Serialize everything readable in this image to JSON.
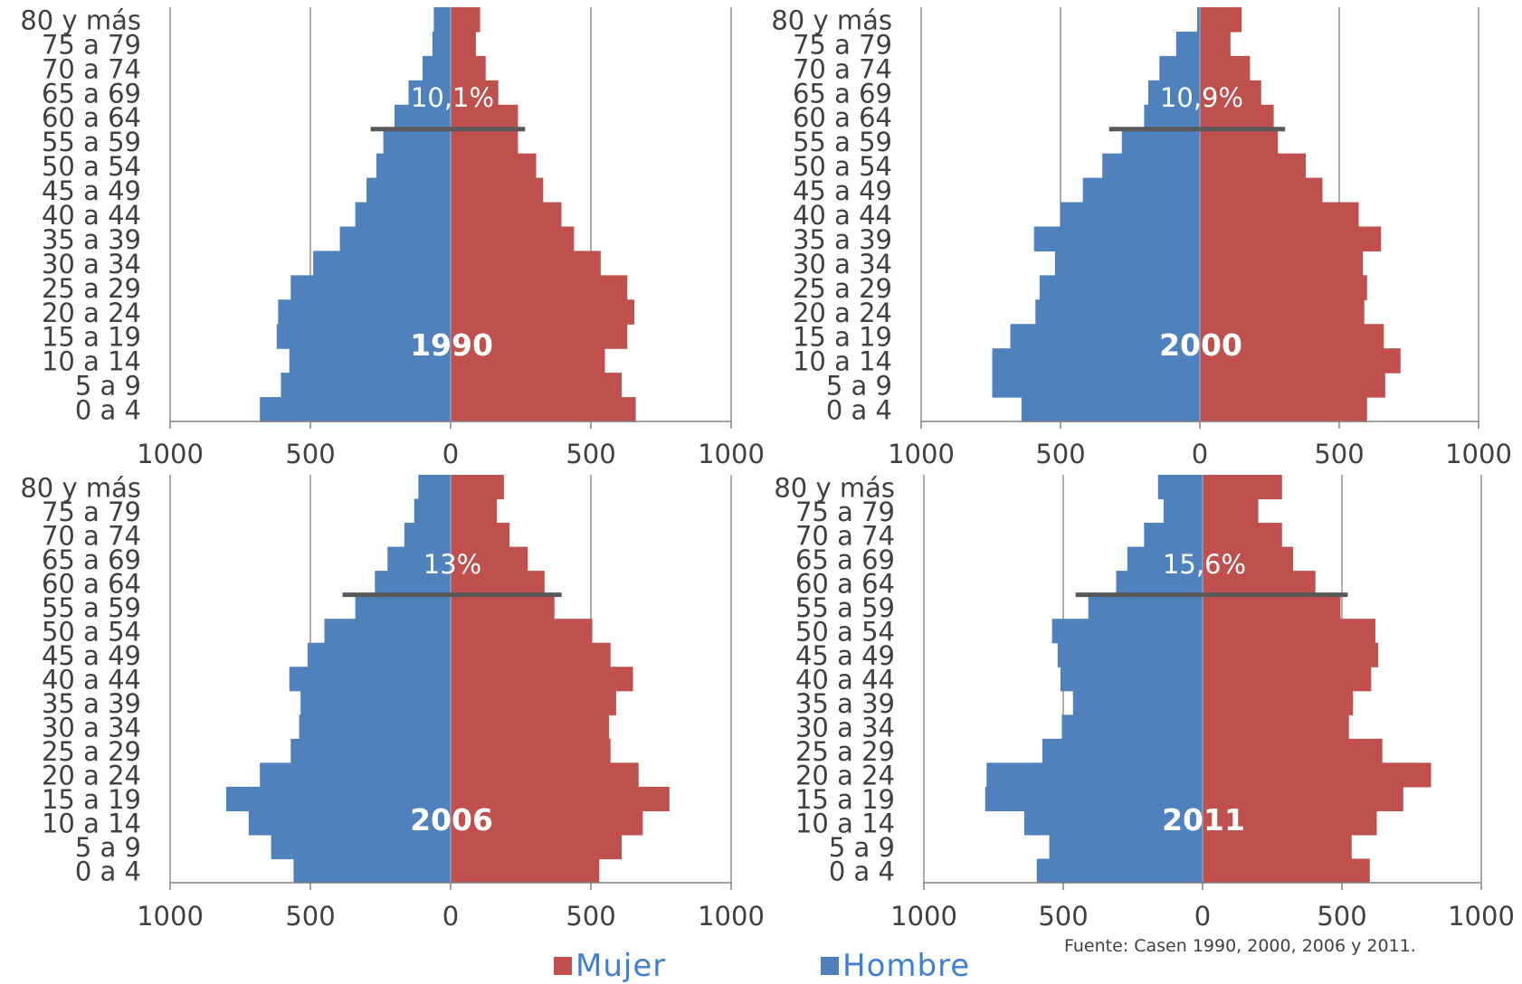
{
  "colors": {
    "mujer": "#c0504d",
    "hombre": "#4f81bd",
    "axis": "#808080",
    "grid": "#808080",
    "marker": "#595959"
  },
  "legend": {
    "mujer": "Mujer",
    "hombre": "Hombre"
  },
  "source": "Fuente: Casen 1990, 2000, 2006 y 2011.",
  "chart_data": [
    {
      "type": "bar",
      "orientation": "horizontal-population-pyramid",
      "title": "1990",
      "annotation": "10,1%",
      "annotation_between": [
        "55 a 59",
        "60 a 64"
      ],
      "categories": [
        "0 a 4",
        "5 a 9",
        "10 a 14",
        "15 a 19",
        "20 a 24",
        "25 a 29",
        "30 a 34",
        "35 a 39",
        "40 a 44",
        "45 a 49",
        "50 a 54",
        "55 a 59",
        "60 a 64",
        "65 a 69",
        "70 a 74",
        "75 a 79",
        "80 y más"
      ],
      "series": [
        {
          "name": "Hombre",
          "values": [
            680,
            605,
            575,
            620,
            615,
            570,
            490,
            395,
            340,
            300,
            265,
            240,
            200,
            150,
            100,
            65,
            60
          ]
        },
        {
          "name": "Mujer",
          "values": [
            660,
            610,
            550,
            630,
            655,
            630,
            535,
            440,
            395,
            330,
            305,
            240,
            240,
            170,
            125,
            90,
            105
          ]
        }
      ],
      "xlim": [
        -1000,
        1000
      ],
      "ticks": [
        1000,
        500,
        0,
        500,
        1000
      ],
      "grid": true
    },
    {
      "type": "bar",
      "orientation": "horizontal-population-pyramid",
      "title": "2000",
      "annotation": "10,9%",
      "annotation_between": [
        "55 a 59",
        "60 a 64"
      ],
      "categories": [
        "0 a 4",
        "5 a 9",
        "10 a 14",
        "15 a 19",
        "20 a 24",
        "25 a 29",
        "30 a 34",
        "35 a 39",
        "40 a 44",
        "45 a 49",
        "50 a 54",
        "55 a 59",
        "60 a 64",
        "65 a 69",
        "70 a 74",
        "75 a 79",
        "80 y más"
      ],
      "series": [
        {
          "name": "Hombre",
          "values": [
            640,
            745,
            745,
            680,
            590,
            575,
            520,
            595,
            500,
            420,
            350,
            280,
            200,
            185,
            145,
            85,
            10
          ]
        },
        {
          "name": "Mujer",
          "values": [
            600,
            665,
            720,
            660,
            590,
            600,
            585,
            650,
            570,
            440,
            380,
            280,
            265,
            220,
            180,
            110,
            150
          ]
        }
      ],
      "xlim": [
        -1000,
        1000
      ],
      "ticks": [
        1000,
        500,
        0,
        500,
        1000
      ],
      "grid": true
    },
    {
      "type": "bar",
      "orientation": "horizontal-population-pyramid",
      "title": "2006",
      "annotation": "13%",
      "annotation_between": [
        "55 a 59",
        "60 a 64"
      ],
      "categories": [
        "0 a 4",
        "5 a 9",
        "10 a 14",
        "15 a 19",
        "20 a 24",
        "25 a 29",
        "30 a 34",
        "35 a 39",
        "40 a 44",
        "45 a 49",
        "50 a 54",
        "55 a 59",
        "60 a 64",
        "65 a 69",
        "70 a 74",
        "75 a 79",
        "80 y más"
      ],
      "series": [
        {
          "name": "Hombre",
          "values": [
            560,
            640,
            720,
            800,
            680,
            570,
            540,
            535,
            575,
            510,
            450,
            340,
            270,
            225,
            165,
            130,
            115
          ]
        },
        {
          "name": "Mujer",
          "values": [
            530,
            610,
            685,
            780,
            670,
            570,
            565,
            590,
            650,
            570,
            505,
            370,
            335,
            275,
            210,
            165,
            190
          ]
        }
      ],
      "xlim": [
        -1000,
        1000
      ],
      "ticks": [
        1000,
        500,
        0,
        500,
        1000
      ],
      "grid": true
    },
    {
      "type": "bar",
      "orientation": "horizontal-population-pyramid",
      "title": "2011",
      "annotation": "15,6%",
      "annotation_between": [
        "55 a 59",
        "60 a 64"
      ],
      "categories": [
        "0 a 4",
        "5 a 9",
        "10 a 14",
        "15 a 19",
        "20 a 24",
        "25 a 29",
        "30 a 34",
        "35 a 39",
        "40 a 44",
        "45 a 49",
        "50 a 54",
        "55 a 59",
        "60 a 64",
        "65 a 69",
        "70 a 74",
        "75 a 79",
        "80 y más"
      ],
      "series": [
        {
          "name": "Hombre",
          "values": [
            595,
            550,
            640,
            780,
            775,
            575,
            505,
            465,
            510,
            520,
            540,
            410,
            310,
            270,
            210,
            140,
            160
          ]
        },
        {
          "name": "Mujer",
          "values": [
            600,
            535,
            625,
            720,
            820,
            645,
            525,
            540,
            605,
            630,
            620,
            495,
            405,
            325,
            285,
            200,
            285
          ]
        }
      ],
      "xlim": [
        -1000,
        1000
      ],
      "ticks": [
        1000,
        500,
        0,
        500,
        1000
      ],
      "grid": true
    }
  ]
}
